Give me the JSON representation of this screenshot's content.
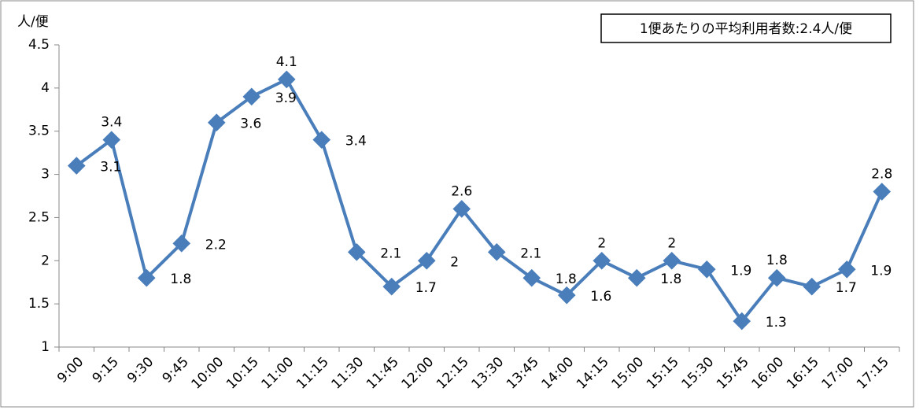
{
  "chart_data": {
    "type": "line",
    "y_label": "人/便",
    "annotation": "1便あたりの平均利用者数:2.4人/便",
    "categories": [
      "9:00",
      "9:15",
      "9:30",
      "9:45",
      "10:00",
      "10:15",
      "11:00",
      "11:15",
      "11:30",
      "11:45",
      "12:00",
      "12:15",
      "13:30",
      "13:45",
      "14:00",
      "14:15",
      "15:00",
      "15:15",
      "15:30",
      "15:45",
      "16:00",
      "16:15",
      "17:00",
      "17:15"
    ],
    "values": [
      3.1,
      3.4,
      1.8,
      2.2,
      3.6,
      3.9,
      4.1,
      3.4,
      2.1,
      1.7,
      2,
      2.6,
      2.1,
      1.8,
      1.6,
      2,
      1.8,
      2,
      1.9,
      1.3,
      1.8,
      1.7,
      1.9,
      2.8
    ],
    "color": "#4a7ebb",
    "ylim": [
      1,
      4.5
    ],
    "yticks": [
      1,
      1.5,
      2,
      2.5,
      3,
      3.5,
      4,
      4.5
    ],
    "grid": false
  }
}
